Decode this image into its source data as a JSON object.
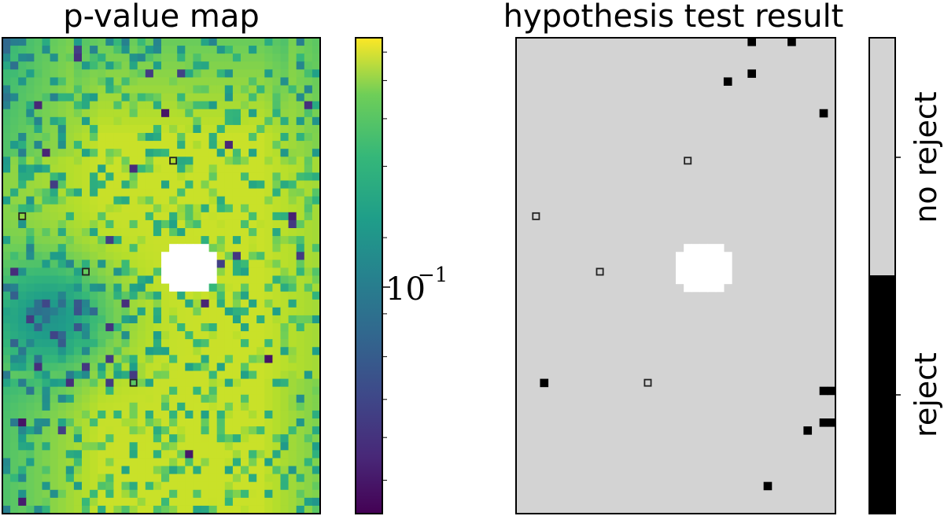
{
  "chart_data": [
    {
      "type": "heatmap",
      "title": "p-value map",
      "colormap": "viridis",
      "color_scale": "log",
      "grid": {
        "rows": 60,
        "cols": 40
      },
      "colorbar": {
        "tick_labels": [
          {
            "base": "10",
            "exponent": "−1",
            "value": 0.1
          }
        ]
      },
      "masked_region": {
        "row_range": [
          26,
          31
        ],
        "col_range": [
          20,
          26
        ],
        "color": "#ffffff"
      },
      "marked_cells": [
        {
          "row": 15,
          "col": 21
        },
        {
          "row": 22,
          "col": 2
        },
        {
          "row": 29,
          "col": 10
        },
        {
          "row": 43,
          "col": 16
        }
      ]
    },
    {
      "type": "heatmap",
      "title": "hypothesis test result",
      "grid": {
        "rows": 60,
        "cols": 40
      },
      "categories": [
        "reject",
        "no reject"
      ],
      "colors": {
        "reject": "#000000",
        "no reject": "#d3d3d3"
      },
      "masked_region": {
        "row_range": [
          26,
          31
        ],
        "col_range": [
          20,
          26
        ],
        "color": "#ffffff"
      },
      "reject_cells": [
        {
          "row": 0,
          "col": 29
        },
        {
          "row": 0,
          "col": 34
        },
        {
          "row": 4,
          "col": 29
        },
        {
          "row": 5,
          "col": 26
        },
        {
          "row": 9,
          "col": 38
        },
        {
          "row": 43,
          "col": 3
        },
        {
          "row": 44,
          "col": 38
        },
        {
          "row": 44,
          "col": 39
        },
        {
          "row": 48,
          "col": 38
        },
        {
          "row": 48,
          "col": 39
        },
        {
          "row": 49,
          "col": 36
        },
        {
          "row": 56,
          "col": 31
        }
      ],
      "marked_cells": [
        {
          "row": 15,
          "col": 21
        },
        {
          "row": 22,
          "col": 2
        },
        {
          "row": 29,
          "col": 10
        },
        {
          "row": 43,
          "col": 16
        }
      ]
    }
  ],
  "colorbars": {
    "categorical": {
      "labels": [
        "no reject",
        "reject"
      ]
    }
  }
}
